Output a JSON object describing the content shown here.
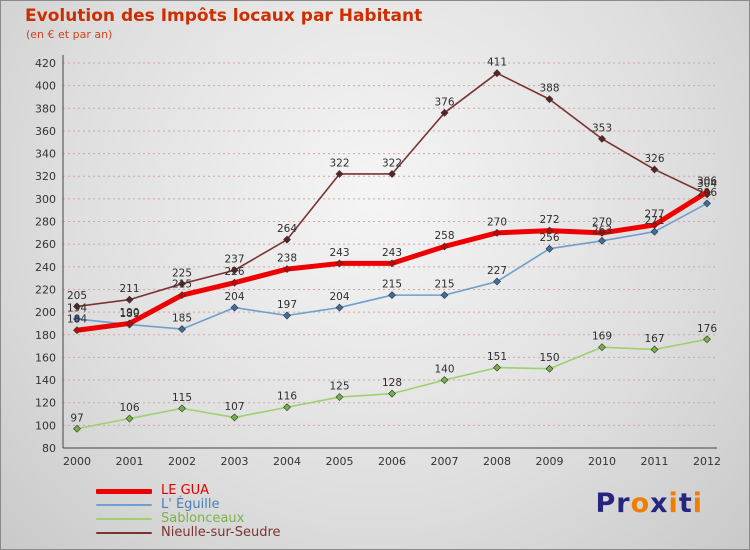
{
  "header": {
    "title": "Evolution des Impôts locaux par Habitant",
    "subtitle": "(en € et par an)"
  },
  "chart_data": {
    "type": "line",
    "x": [
      2000,
      2001,
      2002,
      2003,
      2004,
      2005,
      2006,
      2007,
      2008,
      2009,
      2010,
      2011,
      2012
    ],
    "ylim": [
      80,
      420
    ],
    "ytick_step": 20,
    "grid": true,
    "legend_position": "bottom-left",
    "series": [
      {
        "name": "LE GUA",
        "color": "#ee0000",
        "marker": "#cc0000",
        "width": 5,
        "values": [
          184,
          190,
          215,
          226,
          238,
          243,
          243,
          258,
          270,
          272,
          270,
          277,
          306
        ]
      },
      {
        "name": "L' Éguille",
        "color": "#6f9fca",
        "marker": "#3a6ea5",
        "width": 1.6,
        "values": [
          194,
          189,
          185,
          204,
          197,
          204,
          215,
          215,
          227,
          256,
          263,
          271,
          296
        ]
      },
      {
        "name": "Sablonceaux",
        "color": "#9ed06e",
        "marker": "#74b244",
        "width": 1.6,
        "values": [
          97,
          106,
          115,
          107,
          116,
          125,
          128,
          140,
          151,
          150,
          169,
          167,
          176
        ]
      },
      {
        "name": "Nieulle-sur-Seudre",
        "color": "#7a3333",
        "marker": "#5e2222",
        "width": 1.6,
        "values": [
          205,
          211,
          225,
          237,
          264,
          322,
          322,
          376,
          411,
          388,
          353,
          326,
          304
        ]
      }
    ]
  },
  "logo": {
    "letters": [
      {
        "ch": "P",
        "color": "#26267e"
      },
      {
        "ch": "r",
        "color": "#26267e"
      },
      {
        "ch": "o",
        "color": "#f07d00"
      },
      {
        "ch": "x",
        "color": "#26267e"
      },
      {
        "ch": "i",
        "color": "#f07d00"
      },
      {
        "ch": "t",
        "color": "#26267e"
      },
      {
        "ch": "i",
        "color": "#f07d00"
      }
    ]
  }
}
